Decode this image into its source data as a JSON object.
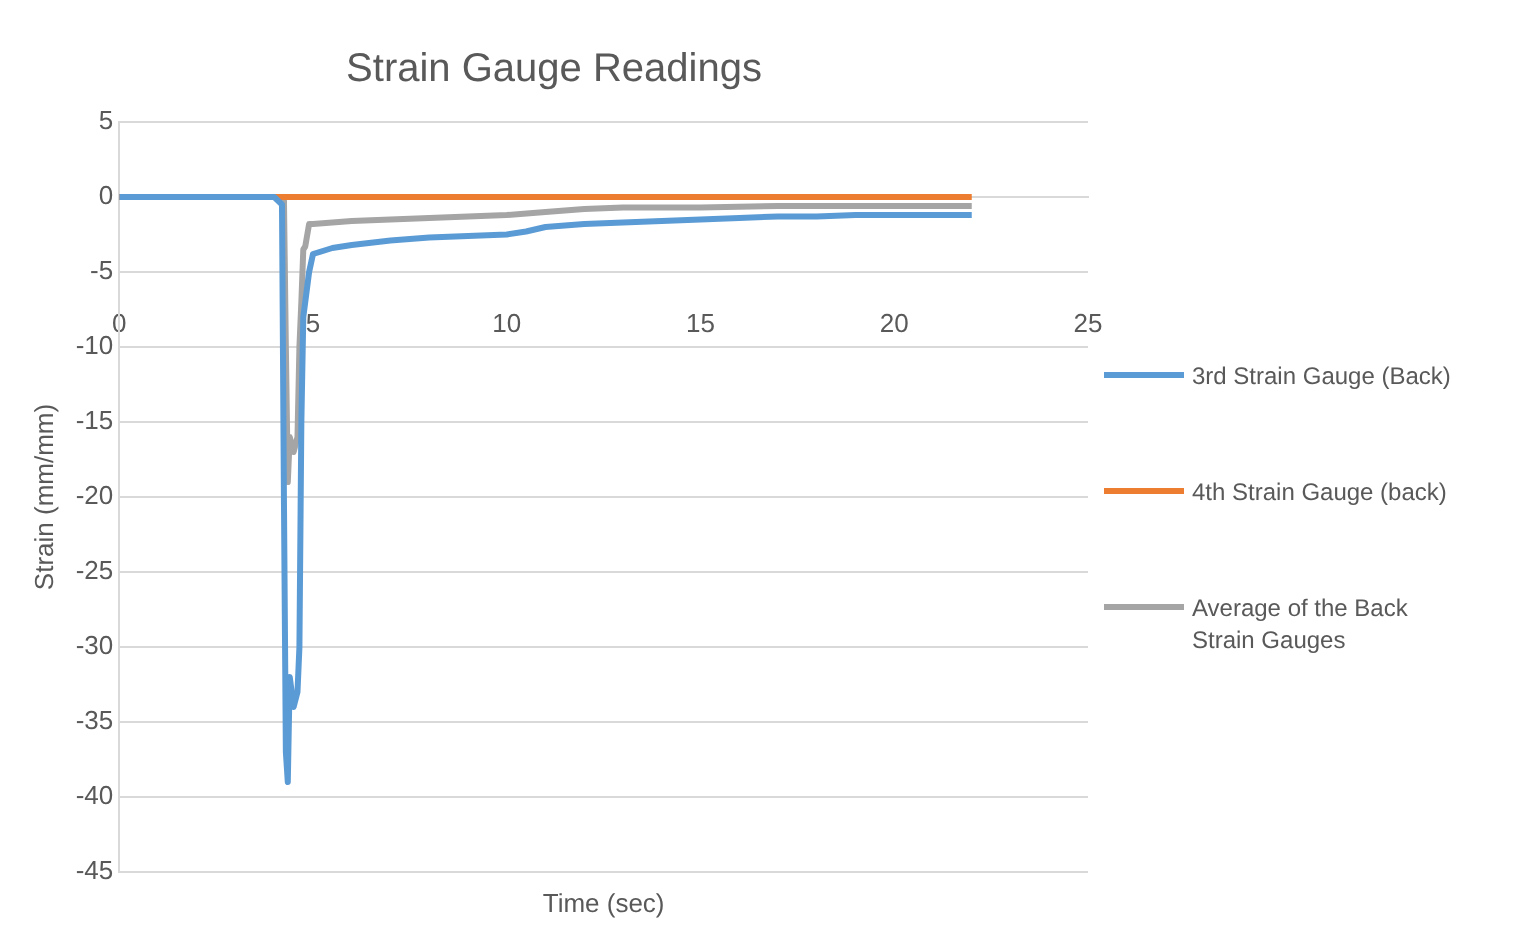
{
  "chart_data": {
    "type": "line",
    "title": "Strain Gauge Readings",
    "xlabel": "Time (sec)",
    "ylabel": "Strain (mm/mm)",
    "xlim": [
      0,
      25
    ],
    "xticks": [
      0,
      5,
      10,
      15,
      20,
      25
    ],
    "ylim": [
      -45,
      5
    ],
    "yticks": [
      5,
      0,
      -5,
      -10,
      -15,
      -20,
      -25,
      -30,
      -35,
      -40,
      -45
    ],
    "grid": "y",
    "legend": "right",
    "marker": "none",
    "line_style": "solid",
    "series": [
      {
        "name": "3rd Strain Gauge (Back)",
        "color": "#5b9bd5",
        "x": [
          0,
          1,
          2,
          3,
          4,
          4.2,
          4.25,
          4.3,
          4.35,
          4.4,
          4.5,
          4.6,
          4.65,
          4.7,
          4.75,
          4.8,
          4.9,
          5,
          5.5,
          6,
          7,
          8,
          9,
          10,
          10.5,
          11,
          12,
          13,
          14,
          15,
          16,
          17,
          18,
          19,
          20,
          21,
          22
        ],
        "values": [
          0,
          0,
          0,
          0,
          0,
          -0.5,
          -20,
          -37,
          -39,
          -32,
          -34,
          -33,
          -30,
          -15,
          -8,
          -7,
          -5,
          -3.8,
          -3.4,
          -3.2,
          -2.9,
          -2.7,
          -2.6,
          -2.5,
          -2.3,
          -2,
          -1.8,
          -1.7,
          -1.6,
          -1.5,
          -1.4,
          -1.3,
          -1.3,
          -1.2,
          -1.2,
          -1.2,
          -1.2
        ]
      },
      {
        "name": "4th Strain Gauge (back)",
        "color": "#ed7d31",
        "x": [
          0,
          22
        ],
        "values": [
          0,
          0
        ]
      },
      {
        "name": "Average of the Back Strain Gauges",
        "color": "#a5a5a5",
        "x": [
          0,
          1,
          2,
          3,
          4,
          4.25,
          4.3,
          4.35,
          4.4,
          4.5,
          4.6,
          4.65,
          4.7,
          4.75,
          4.8,
          4.9,
          5,
          6,
          7,
          8,
          9,
          10,
          11,
          12,
          13,
          15,
          17,
          20,
          22
        ],
        "values": [
          0,
          0,
          0,
          0,
          0,
          0,
          -10,
          -19,
          -16,
          -17,
          -16,
          -10,
          -7,
          -3.5,
          -3.3,
          -1.8,
          -1.8,
          -1.6,
          -1.5,
          -1.4,
          -1.3,
          -1.2,
          -1,
          -0.8,
          -0.7,
          -0.7,
          -0.6,
          -0.6,
          -0.6
        ]
      }
    ]
  }
}
